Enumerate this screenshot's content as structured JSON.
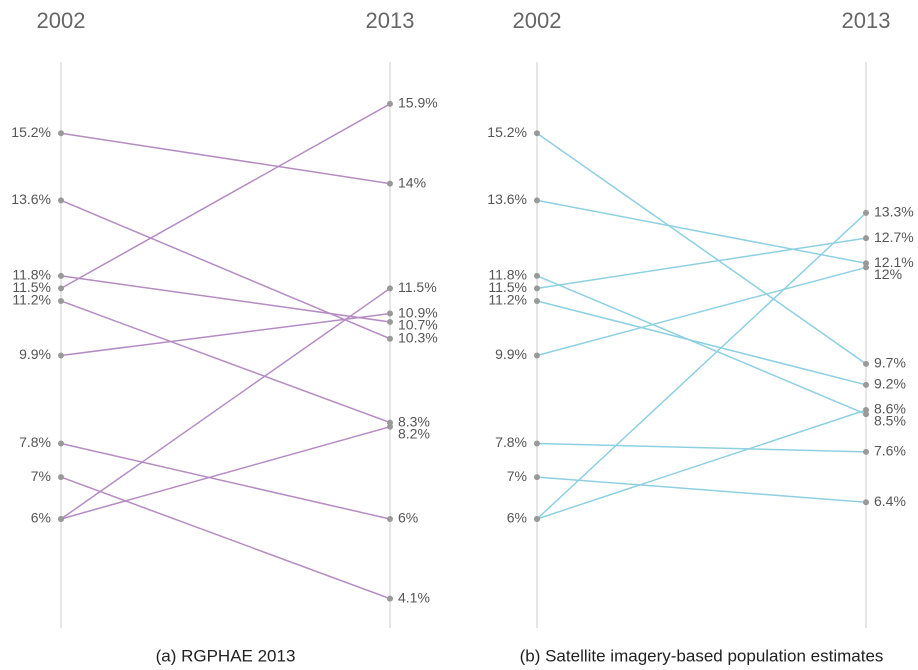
{
  "chart_data": [
    {
      "type": "slope",
      "caption": "(a) RGPHAE 2013",
      "categories": [
        "2002",
        "2013"
      ],
      "color": "#b48cc2",
      "ylim": [
        3.4,
        16.9
      ],
      "series": [
        {
          "values": [
            15.2,
            14
          ],
          "value_labels": [
            "15.2%",
            "14%"
          ]
        },
        {
          "values": [
            13.6,
            10.3
          ],
          "value_labels": [
            "13.6%",
            "10.3%"
          ]
        },
        {
          "values": [
            11.8,
            10.7
          ],
          "value_labels": [
            "11.8%",
            "10.7%"
          ]
        },
        {
          "values": [
            11.5,
            15.9
          ],
          "value_labels": [
            "11.5%",
            "15.9%"
          ]
        },
        {
          "values": [
            11.2,
            8.3
          ],
          "value_labels": [
            "11.2%",
            "8.3%"
          ]
        },
        {
          "values": [
            9.9,
            10.9
          ],
          "value_labels": [
            "9.9%",
            "10.9%"
          ]
        },
        {
          "values": [
            7.8,
            6
          ],
          "value_labels": [
            "7.8%",
            "6%"
          ]
        },
        {
          "values": [
            7,
            4.1
          ],
          "value_labels": [
            "7%",
            "4.1%"
          ]
        },
        {
          "values": [
            6,
            11.5
          ],
          "value_labels": [
            "6%",
            "11.5%"
          ]
        },
        {
          "values": [
            6,
            8.2
          ],
          "value_labels": [
            null,
            "8.2%"
          ]
        }
      ]
    },
    {
      "type": "slope",
      "caption": "(b) Satellite imagery-based population estimates",
      "categories": [
        "2002",
        "2013"
      ],
      "color": "#8ed0e2",
      "ylim": [
        3.4,
        16.9
      ],
      "series": [
        {
          "values": [
            15.2,
            9.7
          ],
          "value_labels": [
            "15.2%",
            "9.7%"
          ]
        },
        {
          "values": [
            13.6,
            12.1
          ],
          "value_labels": [
            "13.6%",
            "12.1%"
          ]
        },
        {
          "values": [
            11.8,
            8.5
          ],
          "value_labels": [
            "11.8%",
            "8.5%"
          ]
        },
        {
          "values": [
            11.5,
            12.7
          ],
          "value_labels": [
            "11.5%",
            "12.7%"
          ]
        },
        {
          "values": [
            11.2,
            9.2
          ],
          "value_labels": [
            "11.2%",
            "9.2%"
          ]
        },
        {
          "values": [
            9.9,
            12
          ],
          "value_labels": [
            "9.9%",
            "12%"
          ]
        },
        {
          "values": [
            7.8,
            7.6
          ],
          "value_labels": [
            "7.8%",
            "7.6%"
          ]
        },
        {
          "values": [
            7,
            6.4
          ],
          "value_labels": [
            "7%",
            "6.4%"
          ]
        },
        {
          "values": [
            6,
            13.3
          ],
          "value_labels": [
            "6%",
            "13.3%"
          ]
        },
        {
          "values": [
            6,
            8.6
          ],
          "value_labels": [
            null,
            "8.6%"
          ]
        }
      ]
    }
  ]
}
